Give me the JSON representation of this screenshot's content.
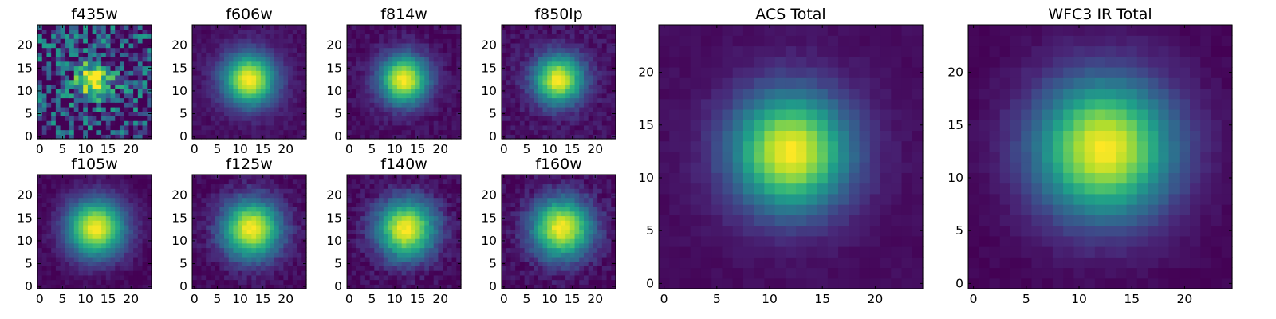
{
  "chart_data": [
    {
      "type": "heatmap",
      "title": "f435w",
      "grid_size": 25,
      "center": [
        12,
        12.5
      ],
      "sigma": 2.6,
      "noise": 0.45,
      "background": 0.12,
      "seed": 11,
      "x_ticks": [
        "0",
        "5",
        "10",
        "15",
        "20"
      ],
      "y_ticks": [
        "0",
        "5",
        "10",
        "15",
        "20"
      ],
      "xlim": [
        0,
        25
      ],
      "ylim": [
        0,
        25
      ],
      "colormap": "viridis"
    },
    {
      "type": "heatmap",
      "title": "f606w",
      "grid_size": 25,
      "center": [
        12,
        12.5
      ],
      "sigma": 3.6,
      "noise": 0.04,
      "background": 0.04,
      "seed": 21,
      "x_ticks": [
        "0",
        "5",
        "10",
        "15",
        "20"
      ],
      "y_ticks": [
        "0",
        "5",
        "10",
        "15",
        "20"
      ],
      "xlim": [
        0,
        25
      ],
      "ylim": [
        0,
        25
      ],
      "colormap": "viridis"
    },
    {
      "type": "heatmap",
      "title": "f814w",
      "grid_size": 25,
      "center": [
        12,
        12.5
      ],
      "sigma": 3.4,
      "noise": 0.05,
      "background": 0.03,
      "seed": 31,
      "x_ticks": [
        "0",
        "5",
        "10",
        "15",
        "20"
      ],
      "y_ticks": [
        "0",
        "5",
        "10",
        "15",
        "20"
      ],
      "xlim": [
        0,
        25
      ],
      "ylim": [
        0,
        25
      ],
      "colormap": "viridis"
    },
    {
      "type": "heatmap",
      "title": "f850lp",
      "grid_size": 25,
      "center": [
        12,
        12.5
      ],
      "sigma": 3.4,
      "noise": 0.06,
      "background": 0.04,
      "seed": 41,
      "x_ticks": [
        "0",
        "5",
        "10",
        "15",
        "20"
      ],
      "y_ticks": [
        "0",
        "5",
        "10",
        "15",
        "20"
      ],
      "xlim": [
        0,
        25
      ],
      "ylim": [
        0,
        25
      ],
      "colormap": "viridis"
    },
    {
      "type": "heatmap",
      "title": "f105w",
      "grid_size": 25,
      "center": [
        12.3,
        12.8
      ],
      "sigma": 4.0,
      "noise": 0.04,
      "background": 0.01,
      "seed": 51,
      "x_ticks": [
        "0",
        "5",
        "10",
        "15",
        "20"
      ],
      "y_ticks": [
        "0",
        "5",
        "10",
        "15",
        "20"
      ],
      "xlim": [
        0,
        25
      ],
      "ylim": [
        0,
        25
      ],
      "colormap": "viridis"
    },
    {
      "type": "heatmap",
      "title": "f125w",
      "grid_size": 25,
      "center": [
        12.5,
        12.6
      ],
      "sigma": 4.1,
      "noise": 0.06,
      "background": 0.01,
      "seed": 61,
      "x_ticks": [
        "0",
        "5",
        "10",
        "15",
        "20"
      ],
      "y_ticks": [
        "0",
        "5",
        "10",
        "15",
        "20"
      ],
      "xlim": [
        0,
        25
      ],
      "ylim": [
        0,
        25
      ],
      "colormap": "viridis"
    },
    {
      "type": "heatmap",
      "title": "f140w",
      "grid_size": 25,
      "center": [
        12.5,
        12.6
      ],
      "sigma": 4.1,
      "noise": 0.07,
      "background": 0.01,
      "seed": 71,
      "x_ticks": [
        "0",
        "5",
        "10",
        "15",
        "20"
      ],
      "y_ticks": [
        "0",
        "5",
        "10",
        "15",
        "20"
      ],
      "xlim": [
        0,
        25
      ],
      "ylim": [
        0,
        25
      ],
      "colormap": "viridis"
    },
    {
      "type": "heatmap",
      "title": "f160w",
      "grid_size": 25,
      "center": [
        12.7,
        12.8
      ],
      "sigma": 4.2,
      "noise": 0.07,
      "background": 0.01,
      "seed": 81,
      "x_ticks": [
        "0",
        "5",
        "10",
        "15",
        "20"
      ],
      "y_ticks": [
        "0",
        "5",
        "10",
        "15",
        "20"
      ],
      "xlim": [
        0,
        25
      ],
      "ylim": [
        0,
        25
      ],
      "colormap": "viridis"
    },
    {
      "type": "heatmap",
      "title": "ACS Total",
      "grid_size": 25,
      "center": [
        12,
        12.5
      ],
      "sigma": 3.5,
      "noise": 0.02,
      "background": 0.03,
      "seed": 91,
      "x_ticks": [
        "0",
        "5",
        "10",
        "15",
        "20"
      ],
      "y_ticks": [
        "0",
        "5",
        "10",
        "15",
        "20"
      ],
      "xlim": [
        0,
        25
      ],
      "ylim": [
        0,
        25
      ],
      "colormap": "viridis"
    },
    {
      "type": "heatmap",
      "title": "WFC3 IR Total",
      "grid_size": 25,
      "center": [
        12.4,
        12.8
      ],
      "sigma": 4.1,
      "noise": 0.02,
      "background": 0.01,
      "seed": 101,
      "x_ticks": [
        "0",
        "5",
        "10",
        "15",
        "20"
      ],
      "y_ticks": [
        "0",
        "5",
        "10",
        "15",
        "20"
      ],
      "xlim": [
        0,
        25
      ],
      "ylim": [
        0,
        25
      ],
      "colormap": "viridis"
    }
  ]
}
